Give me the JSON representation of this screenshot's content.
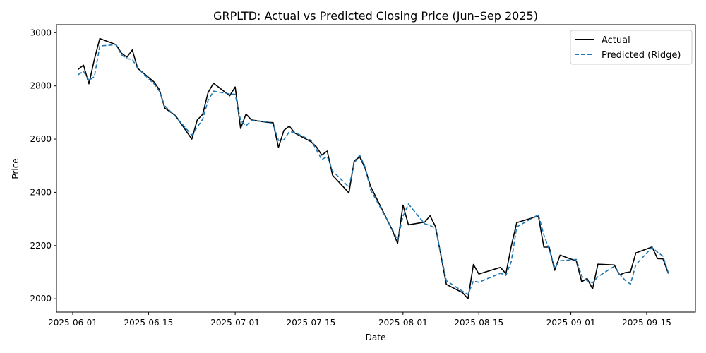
{
  "chart_data": {
    "type": "line",
    "title": "GRPLTD: Actual vs Predicted Closing Price (Jun–Sep 2025)",
    "xlabel": "Date",
    "ylabel": "Price",
    "xlim": [
      "2025-05-29",
      "2025-09-24"
    ],
    "ylim": [
      1950,
      3030
    ],
    "x_ticks": [
      "2025-06-01",
      "2025-06-15",
      "2025-07-01",
      "2025-07-15",
      "2025-08-01",
      "2025-08-15",
      "2025-09-01",
      "2025-09-15"
    ],
    "y_ticks": [
      2000,
      2200,
      2400,
      2600,
      2800,
      3000
    ],
    "grid": false,
    "legend": "top-right",
    "series": [
      {
        "name": "Actual",
        "color": "#000000",
        "style": "solid",
        "points": [
          [
            "2025-06-02",
            2862
          ],
          [
            "2025-06-03",
            2878
          ],
          [
            "2025-06-04",
            2808
          ],
          [
            "2025-06-05",
            2900
          ],
          [
            "2025-06-06",
            2978
          ],
          [
            "2025-06-09",
            2955
          ],
          [
            "2025-06-10",
            2923
          ],
          [
            "2025-06-11",
            2908
          ],
          [
            "2025-06-12",
            2935
          ],
          [
            "2025-06-13",
            2866
          ],
          [
            "2025-06-16",
            2815
          ],
          [
            "2025-06-17",
            2786
          ],
          [
            "2025-06-18",
            2717
          ],
          [
            "2025-06-20",
            2688
          ],
          [
            "2025-06-23",
            2600
          ],
          [
            "2025-06-24",
            2672
          ],
          [
            "2025-06-25",
            2693
          ],
          [
            "2025-06-26",
            2775
          ],
          [
            "2025-06-27",
            2810
          ],
          [
            "2025-06-30",
            2763
          ],
          [
            "2025-07-01",
            2796
          ],
          [
            "2025-07-02",
            2640
          ],
          [
            "2025-07-03",
            2694
          ],
          [
            "2025-07-04",
            2672
          ],
          [
            "2025-07-07",
            2663
          ],
          [
            "2025-07-08",
            2662
          ],
          [
            "2025-07-09",
            2569
          ],
          [
            "2025-07-10",
            2633
          ],
          [
            "2025-07-11",
            2649
          ],
          [
            "2025-07-12",
            2623
          ],
          [
            "2025-07-15",
            2590
          ],
          [
            "2025-07-16",
            2571
          ],
          [
            "2025-07-17",
            2540
          ],
          [
            "2025-07-18",
            2555
          ],
          [
            "2025-07-19",
            2464
          ],
          [
            "2025-07-22",
            2398
          ],
          [
            "2025-07-23",
            2519
          ],
          [
            "2025-07-24",
            2533
          ],
          [
            "2025-07-25",
            2490
          ],
          [
            "2025-07-26",
            2423
          ],
          [
            "2025-07-30",
            2259
          ],
          [
            "2025-07-31",
            2208
          ],
          [
            "2025-08-01",
            2352
          ],
          [
            "2025-08-02",
            2278
          ],
          [
            "2025-08-05",
            2288
          ],
          [
            "2025-08-06",
            2312
          ],
          [
            "2025-08-07",
            2271
          ],
          [
            "2025-08-09",
            2054
          ],
          [
            "2025-08-12",
            2023
          ],
          [
            "2025-08-13",
            2000
          ],
          [
            "2025-08-14",
            2129
          ],
          [
            "2025-08-15",
            2093
          ],
          [
            "2025-08-19",
            2118
          ],
          [
            "2025-08-20",
            2094
          ],
          [
            "2025-08-21",
            2198
          ],
          [
            "2025-08-22",
            2286
          ],
          [
            "2025-08-26",
            2311
          ],
          [
            "2025-08-27",
            2194
          ],
          [
            "2025-08-28",
            2194
          ],
          [
            "2025-08-29",
            2107
          ],
          [
            "2025-08-30",
            2164
          ],
          [
            "2025-09-02",
            2142
          ],
          [
            "2025-09-03",
            2064
          ],
          [
            "2025-09-04",
            2076
          ],
          [
            "2025-09-05",
            2037
          ],
          [
            "2025-09-06",
            2130
          ],
          [
            "2025-09-09",
            2127
          ],
          [
            "2025-09-10",
            2090
          ],
          [
            "2025-09-11",
            2098
          ],
          [
            "2025-09-12",
            2101
          ],
          [
            "2025-09-13",
            2172
          ],
          [
            "2025-09-16",
            2195
          ],
          [
            "2025-09-17",
            2151
          ],
          [
            "2025-09-18",
            2150
          ],
          [
            "2025-09-19",
            2095
          ]
        ]
      },
      {
        "name": "Predicted (Ridge)",
        "color": "#1f77b4",
        "style": "dashed",
        "points": [
          [
            "2025-06-02",
            2842
          ],
          [
            "2025-06-03",
            2855
          ],
          [
            "2025-06-04",
            2820
          ],
          [
            "2025-06-05",
            2835
          ],
          [
            "2025-06-06",
            2950
          ],
          [
            "2025-06-09",
            2955
          ],
          [
            "2025-06-10",
            2917
          ],
          [
            "2025-06-11",
            2902
          ],
          [
            "2025-06-12",
            2900
          ],
          [
            "2025-06-13",
            2866
          ],
          [
            "2025-06-16",
            2808
          ],
          [
            "2025-06-17",
            2780
          ],
          [
            "2025-06-18",
            2725
          ],
          [
            "2025-06-20",
            2685
          ],
          [
            "2025-06-23",
            2615
          ],
          [
            "2025-06-24",
            2645
          ],
          [
            "2025-06-25",
            2675
          ],
          [
            "2025-06-26",
            2745
          ],
          [
            "2025-06-27",
            2780
          ],
          [
            "2025-06-30",
            2770
          ],
          [
            "2025-07-01",
            2768
          ],
          [
            "2025-07-02",
            2670
          ],
          [
            "2025-07-03",
            2650
          ],
          [
            "2025-07-04",
            2670
          ],
          [
            "2025-07-07",
            2665
          ],
          [
            "2025-07-08",
            2657
          ],
          [
            "2025-07-09",
            2595
          ],
          [
            "2025-07-10",
            2597
          ],
          [
            "2025-07-11",
            2628
          ],
          [
            "2025-07-12",
            2625
          ],
          [
            "2025-07-15",
            2595
          ],
          [
            "2025-07-16",
            2560
          ],
          [
            "2025-07-17",
            2523
          ],
          [
            "2025-07-18",
            2535
          ],
          [
            "2025-07-19",
            2480
          ],
          [
            "2025-07-22",
            2420
          ],
          [
            "2025-07-23",
            2510
          ],
          [
            "2025-07-24",
            2540
          ],
          [
            "2025-07-25",
            2495
          ],
          [
            "2025-07-26",
            2410
          ],
          [
            "2025-07-30",
            2262
          ],
          [
            "2025-07-31",
            2220
          ],
          [
            "2025-08-01",
            2310
          ],
          [
            "2025-08-02",
            2356
          ],
          [
            "2025-08-05",
            2282
          ],
          [
            "2025-08-06",
            2275
          ],
          [
            "2025-08-07",
            2265
          ],
          [
            "2025-08-09",
            2068
          ],
          [
            "2025-08-12",
            2028
          ],
          [
            "2025-08-13",
            2016
          ],
          [
            "2025-08-14",
            2067
          ],
          [
            "2025-08-15",
            2062
          ],
          [
            "2025-08-19",
            2096
          ],
          [
            "2025-08-20",
            2088
          ],
          [
            "2025-08-21",
            2140
          ],
          [
            "2025-08-22",
            2270
          ],
          [
            "2025-08-26",
            2316
          ],
          [
            "2025-08-27",
            2240
          ],
          [
            "2025-08-28",
            2185
          ],
          [
            "2025-08-29",
            2118
          ],
          [
            "2025-08-30",
            2143
          ],
          [
            "2025-09-02",
            2148
          ],
          [
            "2025-09-03",
            2085
          ],
          [
            "2025-09-04",
            2068
          ],
          [
            "2025-09-05",
            2060
          ],
          [
            "2025-09-06",
            2083
          ],
          [
            "2025-09-09",
            2122
          ],
          [
            "2025-09-10",
            2092
          ],
          [
            "2025-09-11",
            2070
          ],
          [
            "2025-09-12",
            2055
          ],
          [
            "2025-09-13",
            2128
          ],
          [
            "2025-09-16",
            2193
          ],
          [
            "2025-09-17",
            2175
          ],
          [
            "2025-09-18",
            2160
          ],
          [
            "2025-09-19",
            2097
          ]
        ]
      }
    ]
  }
}
